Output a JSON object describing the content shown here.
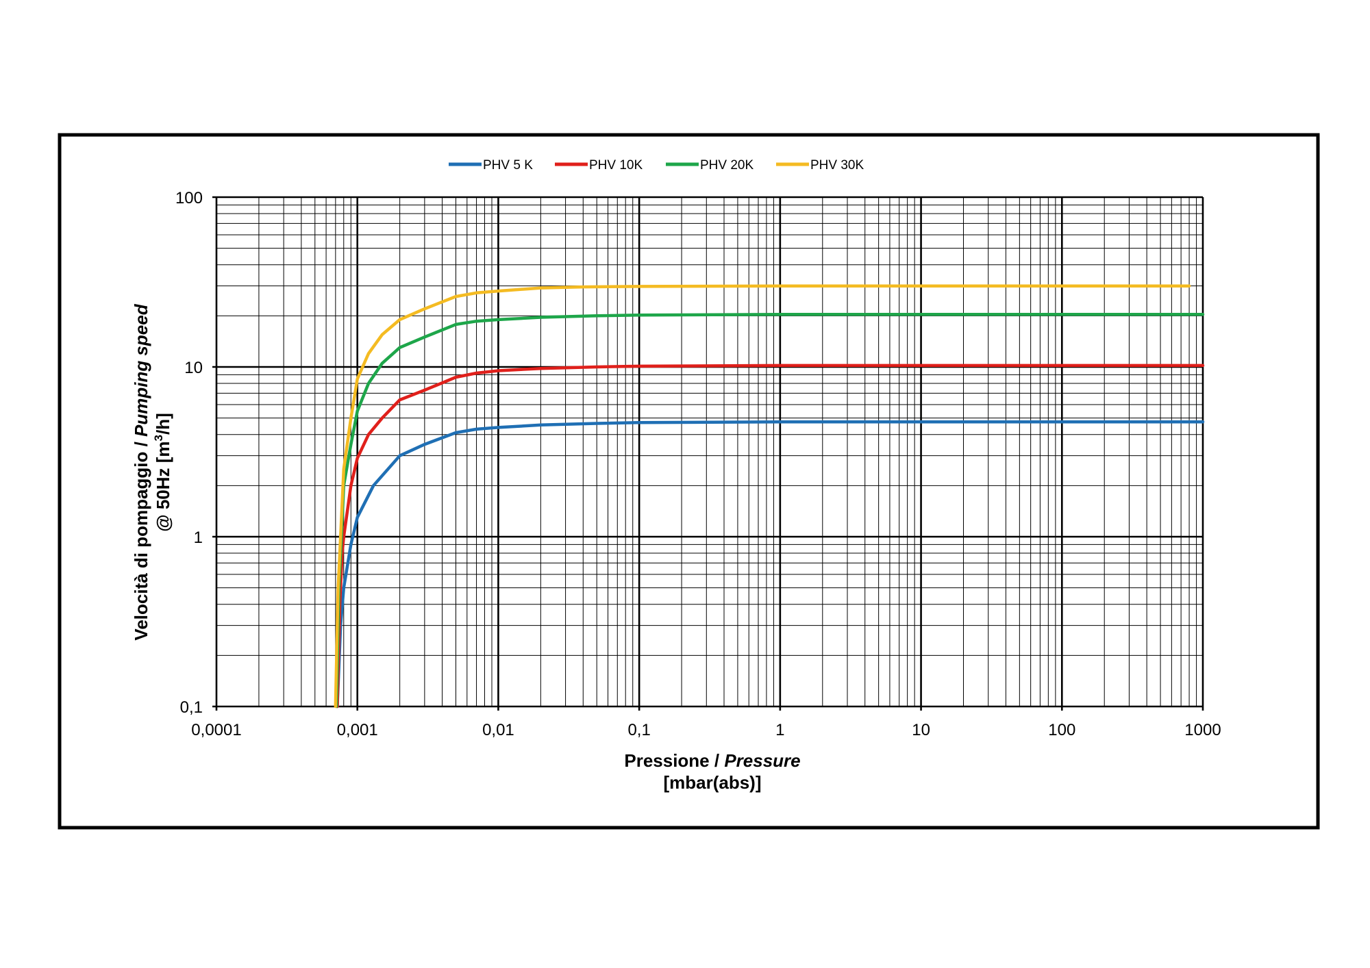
{
  "chart_data": {
    "type": "line",
    "x_scale": "log",
    "y_scale": "log",
    "xlim": [
      0.0001,
      1000
    ],
    "ylim": [
      0.1,
      100
    ],
    "grid": true,
    "legend_position": "top-center",
    "x_tick_labels": [
      "0,0001",
      "0,001",
      "0,01",
      "0,1",
      "1",
      "10",
      "100",
      "1000"
    ],
    "y_tick_labels": [
      "0,1",
      "1",
      "10",
      "100"
    ],
    "xlabel": {
      "line1_plain": "Pressione / ",
      "line1_italic": "Pressure",
      "line2": "[mbar(abs)]"
    },
    "ylabel": {
      "line1_plain": "Velocità di pompaggio / ",
      "line1_italic": "Pumping speed",
      "line2_prefix": "@ 50Hz [m",
      "line2_sup": "3",
      "line2_suffix": "/h]"
    },
    "series": [
      {
        "name": "PHV 5 K",
        "color": "#1f6fb4",
        "points": [
          [
            0.00072,
            0.1
          ],
          [
            0.00076,
            0.3
          ],
          [
            0.0008,
            0.5
          ],
          [
            0.0009,
            0.9
          ],
          [
            0.001,
            1.3
          ],
          [
            0.0013,
            2.0
          ],
          [
            0.002,
            3.0
          ],
          [
            0.003,
            3.5
          ],
          [
            0.005,
            4.1
          ],
          [
            0.007,
            4.3
          ],
          [
            0.01,
            4.4
          ],
          [
            0.02,
            4.55
          ],
          [
            0.05,
            4.65
          ],
          [
            0.1,
            4.7
          ],
          [
            1,
            4.75
          ],
          [
            10,
            4.75
          ],
          [
            100,
            4.75
          ],
          [
            1000,
            4.75
          ]
        ]
      },
      {
        "name": "PHV 10K",
        "color": "#e0201b",
        "points": [
          [
            0.00072,
            0.1
          ],
          [
            0.00075,
            0.4
          ],
          [
            0.00078,
            0.8
          ],
          [
            0.0008,
            1.0
          ],
          [
            0.0009,
            2.0
          ],
          [
            0.001,
            2.9
          ],
          [
            0.0012,
            4.0
          ],
          [
            0.0015,
            5.0
          ],
          [
            0.002,
            6.4
          ],
          [
            0.003,
            7.3
          ],
          [
            0.005,
            8.7
          ],
          [
            0.007,
            9.2
          ],
          [
            0.01,
            9.5
          ],
          [
            0.02,
            9.8
          ],
          [
            0.05,
            10.0
          ],
          [
            0.1,
            10.1
          ],
          [
            1,
            10.2
          ],
          [
            10,
            10.2
          ],
          [
            100,
            10.2
          ],
          [
            1000,
            10.2
          ]
        ]
      },
      {
        "name": "PHV 20K",
        "color": "#1ea64a",
        "points": [
          [
            0.00071,
            0.1
          ],
          [
            0.00074,
            0.5
          ],
          [
            0.00077,
            1.0
          ],
          [
            0.0008,
            2.0
          ],
          [
            0.0009,
            3.5
          ],
          [
            0.001,
            5.5
          ],
          [
            0.0012,
            8.0
          ],
          [
            0.0015,
            10.5
          ],
          [
            0.002,
            13.0
          ],
          [
            0.003,
            15.0
          ],
          [
            0.005,
            17.8
          ],
          [
            0.007,
            18.6
          ],
          [
            0.01,
            19.0
          ],
          [
            0.02,
            19.6
          ],
          [
            0.05,
            20.0
          ],
          [
            0.1,
            20.2
          ],
          [
            1,
            20.4
          ],
          [
            10,
            20.4
          ],
          [
            100,
            20.4
          ],
          [
            1000,
            20.4
          ]
        ]
      },
      {
        "name": "PHV 30K",
        "color": "#f4bb22",
        "points": [
          [
            0.0007,
            0.1
          ],
          [
            0.00073,
            0.5
          ],
          [
            0.00076,
            1.0
          ],
          [
            0.0008,
            2.5
          ],
          [
            0.0009,
            5.0
          ],
          [
            0.001,
            8.5
          ],
          [
            0.0012,
            12.0
          ],
          [
            0.0015,
            15.5
          ],
          [
            0.002,
            19.0
          ],
          [
            0.003,
            22.0
          ],
          [
            0.005,
            26.0
          ],
          [
            0.007,
            27.3
          ],
          [
            0.01,
            28.0
          ],
          [
            0.02,
            29.2
          ],
          [
            0.04,
            29.6
          ],
          [
            0.1,
            29.8
          ],
          [
            1,
            30.0
          ],
          [
            10,
            30.0
          ],
          [
            100,
            30.0
          ],
          [
            800,
            30.0
          ]
        ]
      }
    ]
  }
}
